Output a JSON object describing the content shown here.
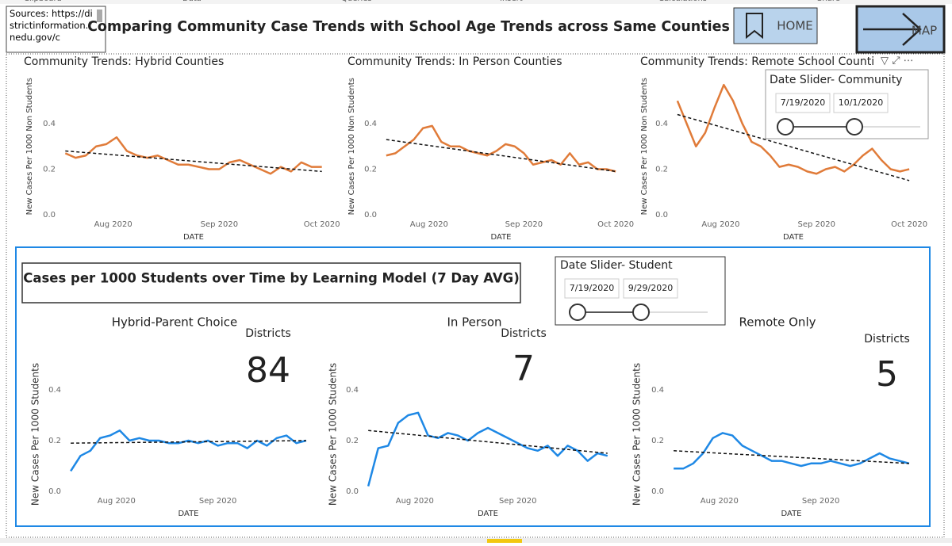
{
  "ribbon": [
    "Clipboard",
    "Data",
    "Queries",
    "Insert",
    "Calculations",
    "Share"
  ],
  "sources": "Sources: https://districtinformation.tnedu.gov/c",
  "title": "Comparing Community Case Trends with School Age Trends across Same Counties",
  "buttons": {
    "home": "HOME",
    "map": "MAP"
  },
  "community_slider": {
    "title": "Date Slider- Community",
    "start": "7/19/2020",
    "end": "10/1/2020"
  },
  "student_section": {
    "title": "Cases per 1000 Students over Time by Learning Model (7 Day AVG)",
    "slider": {
      "title": "Date Slider- Student",
      "start": "7/19/2020",
      "end": "9/29/2020"
    }
  },
  "chart_data": [
    {
      "type": "line",
      "title": "Community Trends: Hybrid Counties",
      "x_label": "DATE",
      "y_label": "New Cases Per 1000 Non Students",
      "color": "#e07b39",
      "x": [
        0,
        3,
        6,
        9,
        12,
        15,
        18,
        21,
        24,
        27,
        30,
        33,
        36,
        39,
        42,
        45,
        48,
        51,
        54,
        57,
        60,
        63,
        66,
        69,
        72,
        75
      ],
      "values": [
        0.27,
        0.25,
        0.26,
        0.3,
        0.31,
        0.34,
        0.28,
        0.26,
        0.25,
        0.26,
        0.24,
        0.22,
        0.22,
        0.21,
        0.2,
        0.2,
        0.23,
        0.24,
        0.22,
        0.2,
        0.18,
        0.21,
        0.19,
        0.23,
        0.21,
        0.21
      ],
      "trend": {
        "x": [
          0,
          75
        ],
        "values": [
          0.28,
          0.19
        ]
      },
      "xlim": [
        -1,
        76
      ],
      "xticks": [
        {
          "value": 14,
          "label": "Aug 2020"
        },
        {
          "value": 45,
          "label": "Sep 2020"
        },
        {
          "value": 75,
          "label": "Oct 2020"
        }
      ],
      "ylim": [
        0,
        0.6
      ],
      "yticks": [
        {
          "value": 0,
          "label": "0.0"
        },
        0.2,
        0.4
      ]
    },
    {
      "type": "line",
      "title": "Community Trends: In Person Counties",
      "x_label": "DATE",
      "y_label": "New Cases Per 1000 Non Students",
      "color": "#e07b39",
      "x": [
        0,
        3,
        6,
        9,
        12,
        15,
        18,
        21,
        24,
        27,
        30,
        33,
        36,
        39,
        42,
        45,
        48,
        51,
        54,
        57,
        60,
        63,
        66,
        69,
        72,
        75
      ],
      "values": [
        0.26,
        0.27,
        0.3,
        0.33,
        0.38,
        0.39,
        0.32,
        0.3,
        0.3,
        0.28,
        0.27,
        0.26,
        0.28,
        0.31,
        0.3,
        0.27,
        0.22,
        0.23,
        0.24,
        0.22,
        0.27,
        0.22,
        0.23,
        0.2,
        0.2,
        0.19
      ],
      "trend": {
        "x": [
          0,
          75
        ],
        "values": [
          0.33,
          0.19
        ]
      },
      "xlim": [
        -1,
        76
      ],
      "xticks": [
        {
          "value": 14,
          "label": "Aug 2020"
        },
        {
          "value": 45,
          "label": "Sep 2020"
        },
        {
          "value": 75,
          "label": "Oct 2020"
        }
      ],
      "ylim": [
        0,
        0.6
      ],
      "yticks": [
        {
          "value": 0,
          "label": "0.0"
        },
        0.2,
        0.4
      ]
    },
    {
      "type": "line",
      "title": "Community Trends: Remote School Counti",
      "x_label": "DATE",
      "y_label": "New Cases Per 1000 Non Students",
      "color": "#e07b39",
      "x": [
        0,
        3,
        6,
        9,
        12,
        15,
        18,
        21,
        24,
        27,
        30,
        33,
        36,
        39,
        42,
        45,
        48,
        51,
        54,
        57,
        60,
        63,
        66,
        69,
        72,
        75
      ],
      "values": [
        0.5,
        0.4,
        0.3,
        0.36,
        0.47,
        0.57,
        0.5,
        0.4,
        0.32,
        0.3,
        0.26,
        0.21,
        0.22,
        0.21,
        0.19,
        0.18,
        0.2,
        0.21,
        0.19,
        0.22,
        0.26,
        0.29,
        0.24,
        0.2,
        0.19,
        0.2
      ],
      "trend": {
        "x": [
          0,
          75
        ],
        "values": [
          0.44,
          0.15
        ]
      },
      "xlim": [
        -1,
        76
      ],
      "xticks": [
        {
          "value": 14,
          "label": "Aug 2020"
        },
        {
          "value": 45,
          "label": "Sep 2020"
        },
        {
          "value": 75,
          "label": "Oct 2020"
        }
      ],
      "ylim": [
        0,
        0.6
      ],
      "yticks": [
        {
          "value": 0,
          "label": "0.0"
        },
        0.2,
        0.4
      ]
    },
    {
      "type": "line",
      "title": "Hybrid-Parent Choice",
      "card": {
        "label": "Districts",
        "value": 84
      },
      "x_label": "DATE",
      "y_label": "New Cases Per 1000 Students",
      "color": "#1e88e5",
      "x": [
        0,
        3,
        6,
        9,
        12,
        15,
        18,
        21,
        24,
        27,
        30,
        33,
        36,
        39,
        42,
        45,
        48,
        51,
        54,
        57,
        60,
        63,
        66,
        69,
        72
      ],
      "values": [
        0.08,
        0.14,
        0.16,
        0.21,
        0.22,
        0.24,
        0.2,
        0.21,
        0.2,
        0.2,
        0.19,
        0.19,
        0.2,
        0.19,
        0.2,
        0.18,
        0.19,
        0.19,
        0.17,
        0.2,
        0.18,
        0.21,
        0.22,
        0.19,
        0.2
      ],
      "trend": {
        "x": [
          0,
          72
        ],
        "values": [
          0.19,
          0.2
        ]
      },
      "xlim": [
        -1,
        73
      ],
      "xticks": [
        {
          "value": 14,
          "label": "Aug 2020"
        },
        {
          "value": 45,
          "label": "Sep 2020"
        }
      ],
      "ylim": [
        0,
        0.45
      ],
      "yticks": [
        {
          "value": 0,
          "label": "0.0"
        },
        0.2,
        0.4
      ]
    },
    {
      "type": "line",
      "title": "In Person",
      "card": {
        "label": "Districts",
        "value": 7
      },
      "x_label": "DATE",
      "y_label": "New Cases Per 1000 Students",
      "color": "#1e88e5",
      "x": [
        0,
        3,
        6,
        9,
        12,
        15,
        18,
        21,
        24,
        27,
        30,
        33,
        36,
        39,
        42,
        45,
        48,
        51,
        54,
        57,
        60,
        63,
        66,
        69,
        72
      ],
      "values": [
        0.02,
        0.17,
        0.18,
        0.27,
        0.3,
        0.31,
        0.22,
        0.21,
        0.23,
        0.22,
        0.2,
        0.23,
        0.25,
        0.23,
        0.21,
        0.19,
        0.17,
        0.16,
        0.18,
        0.14,
        0.18,
        0.16,
        0.12,
        0.15,
        0.14
      ],
      "trend": {
        "x": [
          0,
          72
        ],
        "values": [
          0.24,
          0.15
        ]
      },
      "xlim": [
        -1,
        73
      ],
      "xticks": [
        {
          "value": 14,
          "label": "Aug 2020"
        },
        {
          "value": 45,
          "label": "Sep 2020"
        }
      ],
      "ylim": [
        0,
        0.45
      ],
      "yticks": [
        {
          "value": 0,
          "label": "0.0"
        },
        0.2,
        0.4
      ]
    },
    {
      "type": "line",
      "title": "Remote Only",
      "card": {
        "label": "Districts",
        "value": 5
      },
      "x_label": "DATE",
      "y_label": "New Cases Per 1000 Students",
      "color": "#1e88e5",
      "x": [
        0,
        3,
        6,
        9,
        12,
        15,
        18,
        21,
        24,
        27,
        30,
        33,
        36,
        39,
        42,
        45,
        48,
        51,
        54,
        57,
        60,
        63,
        66,
        69,
        72
      ],
      "values": [
        0.09,
        0.09,
        0.11,
        0.15,
        0.21,
        0.23,
        0.22,
        0.18,
        0.16,
        0.14,
        0.12,
        0.12,
        0.11,
        0.1,
        0.11,
        0.11,
        0.12,
        0.11,
        0.1,
        0.11,
        0.13,
        0.15,
        0.13,
        0.12,
        0.11
      ],
      "trend": {
        "x": [
          0,
          72
        ],
        "values": [
          0.16,
          0.11
        ]
      },
      "xlim": [
        -1,
        73
      ],
      "xticks": [
        {
          "value": 14,
          "label": "Aug 2020"
        },
        {
          "value": 45,
          "label": "Sep 2020"
        }
      ],
      "ylim": [
        0,
        0.45
      ],
      "yticks": [
        {
          "value": 0,
          "label": "0.0"
        },
        0.2,
        0.4
      ]
    }
  ]
}
